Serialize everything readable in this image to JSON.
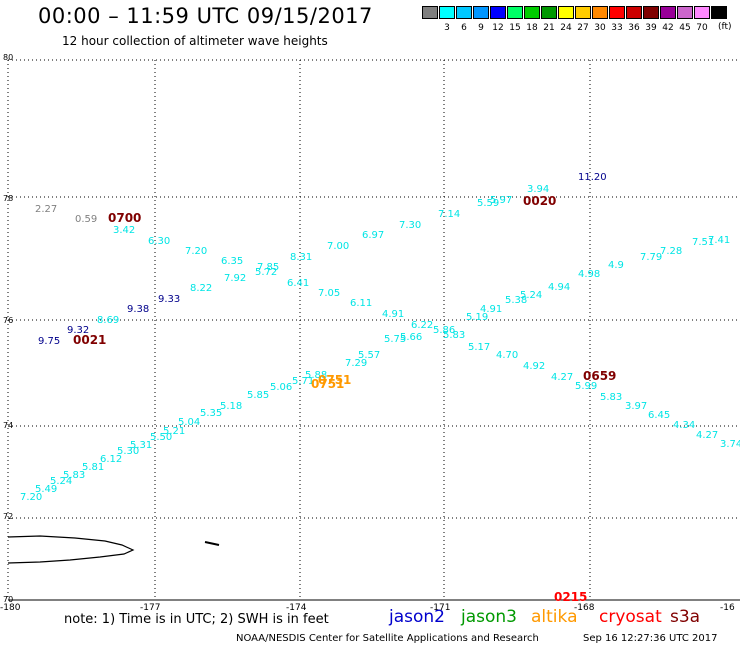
{
  "header": {
    "title": "00:00 – 11:59 UTC 09/15/2017",
    "subtitle": "12 hour collection of altimeter wave heights"
  },
  "color_scale": {
    "unit": "(ft)",
    "bins": [
      {
        "label": "",
        "color": "#7f7f7f"
      },
      {
        "label": "3",
        "color": "#00ffff"
      },
      {
        "label": "6",
        "color": "#00c8ff"
      },
      {
        "label": "9",
        "color": "#0096ff"
      },
      {
        "label": "12",
        "color": "#0000ff"
      },
      {
        "label": "15",
        "color": "#00ff66"
      },
      {
        "label": "18",
        "color": "#00cc00"
      },
      {
        "label": "21",
        "color": "#009900"
      },
      {
        "label": "24",
        "color": "#ffff00"
      },
      {
        "label": "27",
        "color": "#ffcc00"
      },
      {
        "label": "30",
        "color": "#ff8800"
      },
      {
        "label": "33",
        "color": "#ff0000"
      },
      {
        "label": "36",
        "color": "#cc0000"
      },
      {
        "label": "39",
        "color": "#800000"
      },
      {
        "label": "42",
        "color": "#990099"
      },
      {
        "label": "45",
        "color": "#cc66cc"
      },
      {
        "label": "70",
        "color": "#ff88ff"
      },
      {
        "label": "",
        "color": "#000000"
      }
    ]
  },
  "axes": {
    "lat_labels": [
      "80",
      "78",
      "76",
      "74",
      "72",
      "70"
    ],
    "lon_labels": [
      "-180",
      "-177",
      "-174",
      "-171",
      "-168",
      "-16"
    ]
  },
  "colors": {
    "cyan": "#00e5e5",
    "gray": "#808080",
    "navy": "#00008b",
    "time_dark": "#800000",
    "time_orange": "#ff9900",
    "time_red": "#ff0000"
  },
  "observations": [
    {
      "text": "2.27",
      "c": "gray"
    },
    {
      "text": "0.59",
      "c": "gray"
    },
    {
      "text": "3.42",
      "c": "cyan"
    },
    {
      "text": "6.30",
      "c": "cyan"
    },
    {
      "text": "7.20",
      "c": "cyan"
    },
    {
      "text": "6.35",
      "c": "cyan"
    },
    {
      "text": "7.92",
      "c": "cyan"
    },
    {
      "text": "7.85",
      "c": "cyan"
    },
    {
      "text": "5.72",
      "c": "cyan"
    },
    {
      "text": "8.31",
      "c": "cyan"
    },
    {
      "text": "7.00",
      "c": "cyan"
    },
    {
      "text": "6.97",
      "c": "cyan"
    },
    {
      "text": "7.30",
      "c": "cyan"
    },
    {
      "text": "7.14",
      "c": "cyan"
    },
    {
      "text": "5.59",
      "c": "cyan"
    },
    {
      "text": "5.97",
      "c": "cyan"
    },
    {
      "text": "3.94",
      "c": "cyan"
    },
    {
      "text": "11.20",
      "c": "navy"
    },
    {
      "text": "8.22",
      "c": "cyan"
    },
    {
      "text": "9.33",
      "c": "navy"
    },
    {
      "text": "9.38",
      "c": "navy"
    },
    {
      "text": "8.69",
      "c": "cyan"
    },
    {
      "text": "9.32",
      "c": "navy"
    },
    {
      "text": "9.75",
      "c": "navy"
    },
    {
      "text": "6.41",
      "c": "cyan"
    },
    {
      "text": "7.05",
      "c": "cyan"
    },
    {
      "text": "6.11",
      "c": "cyan"
    },
    {
      "text": "4.91",
      "c": "cyan"
    },
    {
      "text": "6.22",
      "c": "cyan"
    },
    {
      "text": "5.83",
      "c": "cyan"
    },
    {
      "text": "5.17",
      "c": "cyan"
    },
    {
      "text": "4.70",
      "c": "cyan"
    },
    {
      "text": "4.92",
      "c": "cyan"
    },
    {
      "text": "4.27",
      "c": "cyan"
    },
    {
      "text": "5.99",
      "c": "cyan"
    },
    {
      "text": "5.83",
      "c": "cyan"
    },
    {
      "text": "3.97",
      "c": "cyan"
    },
    {
      "text": "6.45",
      "c": "cyan"
    },
    {
      "text": "4.34",
      "c": "cyan"
    },
    {
      "text": "4.27",
      "c": "cyan"
    },
    {
      "text": "3.74",
      "c": "cyan"
    },
    {
      "text": "7.20",
      "c": "cyan"
    },
    {
      "text": "5.49",
      "c": "cyan"
    },
    {
      "text": "5.24",
      "c": "cyan"
    },
    {
      "text": "5.83",
      "c": "cyan"
    },
    {
      "text": "5.81",
      "c": "cyan"
    },
    {
      "text": "6.12",
      "c": "cyan"
    },
    {
      "text": "5.30",
      "c": "cyan"
    },
    {
      "text": "5.31",
      "c": "cyan"
    },
    {
      "text": "5.50",
      "c": "cyan"
    },
    {
      "text": "5.21",
      "c": "cyan"
    },
    {
      "text": "5.04",
      "c": "cyan"
    },
    {
      "text": "5.35",
      "c": "cyan"
    },
    {
      "text": "5.18",
      "c": "cyan"
    },
    {
      "text": "5.85",
      "c": "cyan"
    },
    {
      "text": "5.06",
      "c": "cyan"
    },
    {
      "text": "5.71",
      "c": "cyan"
    },
    {
      "text": "5.88",
      "c": "cyan"
    },
    {
      "text": "7.29",
      "c": "cyan"
    },
    {
      "text": "5.57",
      "c": "cyan"
    },
    {
      "text": "5.75",
      "c": "cyan"
    },
    {
      "text": "5.66",
      "c": "cyan"
    },
    {
      "text": "5.86",
      "c": "cyan"
    },
    {
      "text": "5.19",
      "c": "cyan"
    },
    {
      "text": "4.91",
      "c": "cyan"
    },
    {
      "text": "5.38",
      "c": "cyan"
    },
    {
      "text": "5.24",
      "c": "cyan"
    },
    {
      "text": "4.94",
      "c": "cyan"
    },
    {
      "text": "4.98",
      "c": "cyan"
    },
    {
      "text": "4.9",
      "c": "cyan"
    },
    {
      "text": "7.79",
      "c": "cyan"
    },
    {
      "text": "7.28",
      "c": "cyan"
    },
    {
      "text": "7.51",
      "c": "cyan"
    },
    {
      "text": "7.41",
      "c": "cyan"
    }
  ],
  "times": [
    {
      "text": "0700",
      "c": "time_dark"
    },
    {
      "text": "0020",
      "c": "time_dark"
    },
    {
      "text": "0021",
      "c": "time_dark"
    },
    {
      "text": "0659",
      "c": "time_dark"
    },
    {
      "text": "0751",
      "c": "time_orange"
    },
    {
      "text": "0751",
      "c": "time_orange"
    },
    {
      "text": "0215",
      "c": "time_red"
    }
  ],
  "footer": {
    "note": "note: 1) Time is in UTC; 2) SWH is in feet",
    "satellites": [
      {
        "name": "jason2",
        "color": "#0000cc"
      },
      {
        "name": "jason3",
        "color": "#009900"
      },
      {
        "name": "altika",
        "color": "#ff9900"
      },
      {
        "name": "cryosat",
        "color": "#ff0000"
      },
      {
        "name": "s3a",
        "color": "#800000"
      }
    ],
    "credit": "NOAA/NESDIS Center for Satellite Applications and Research",
    "timestamp": "Sep 16 12:27:36 UTC 2017"
  }
}
